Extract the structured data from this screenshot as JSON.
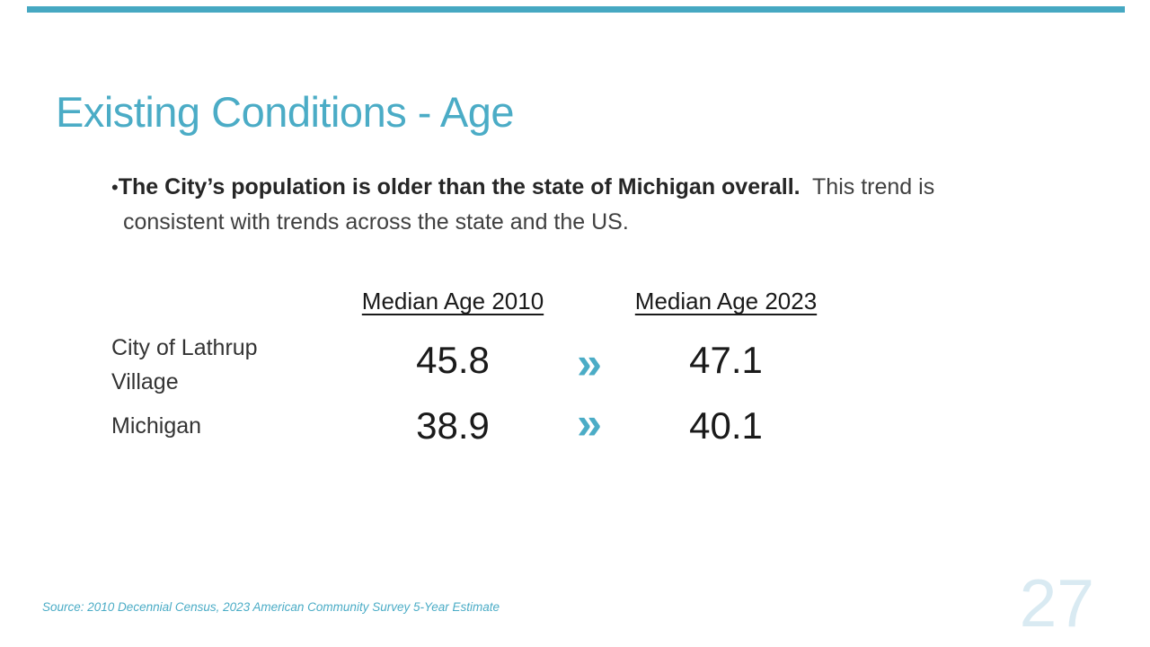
{
  "slide": {
    "title": "Existing Conditions - Age",
    "bullet": {
      "marker": "•",
      "lead": "The City’s population is older than the state of Michigan overall.",
      "rest": "  This trend is consistent with trends across the state and the US."
    },
    "table": {
      "headers": [
        "Median Age 2010",
        "Median Age 2023"
      ],
      "arrow_glyph": "»",
      "rows": [
        {
          "label": "City of Lathrup Village",
          "age_2010": "45.8",
          "age_2023": "47.1"
        },
        {
          "label": "Michigan",
          "age_2010": "38.9",
          "age_2023": "40.1"
        }
      ]
    },
    "source": "Source: 2010 Decennial Census, 2023 American Community Survey 5-Year Estimate",
    "page_number": "27",
    "colors": {
      "accent_teal": "#4bacc6",
      "top_bar_teal": "#46a8c2",
      "page_number_pale_blue": "#d9eaf2",
      "body_text": "#404040",
      "emphasis_text": "#262626"
    }
  }
}
